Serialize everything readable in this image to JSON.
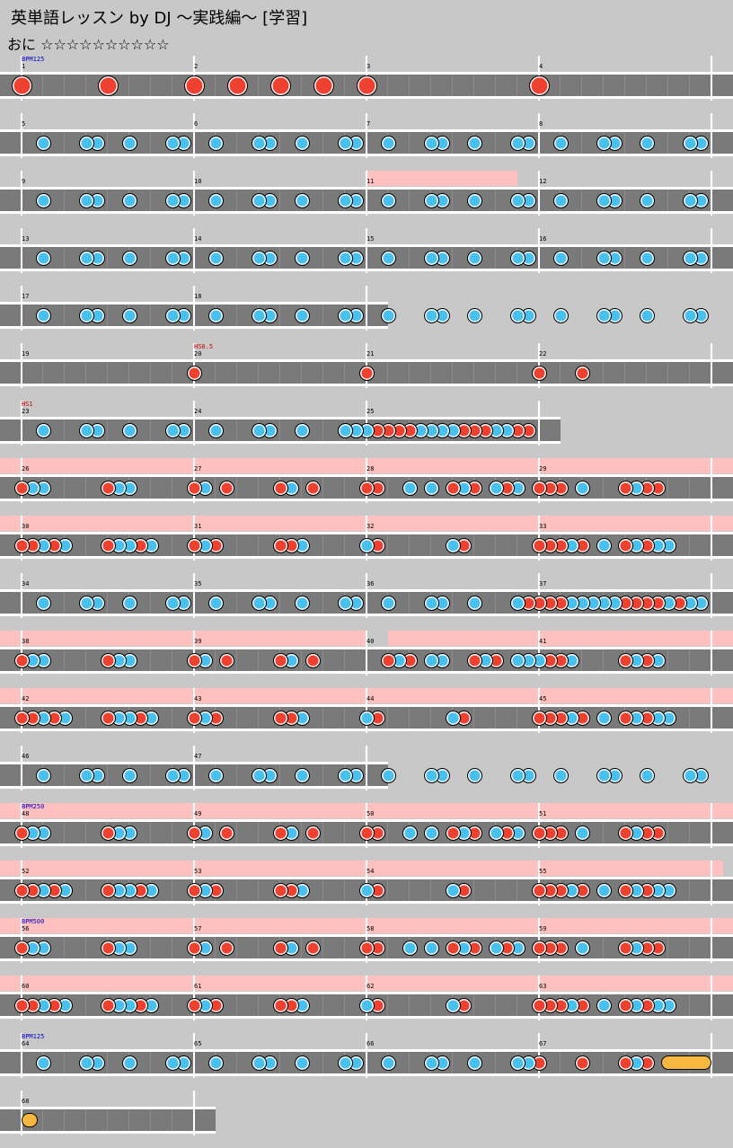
{
  "song": {
    "title": "英単語レッスン by DJ ～実践編～ [学習]",
    "difficulty_label": "おに",
    "stars": "☆☆☆☆☆☆☆☆☆☆"
  },
  "colors": {
    "don": "#f04030",
    "ka": "#48c0f0",
    "gogo": "#ffc0c0",
    "lane": "#7a7a7a",
    "background": "#c8c8c8",
    "roll": "#f8b840"
  },
  "rows": [
    {
      "first_bar": 1,
      "bars": 4,
      "commands": [
        {
          "type": "bpm",
          "text": "BPM125",
          "bar_index": 0
        }
      ],
      "gogo": [],
      "notes": [
        {
          "t": "D",
          "p": 0
        },
        {
          "t": "D",
          "p": 0.5
        },
        {
          "t": "D",
          "p": 1
        },
        {
          "t": "D",
          "p": 1.25
        },
        {
          "t": "D",
          "p": 1.5
        },
        {
          "t": "D",
          "p": 1.75
        },
        {
          "t": "D",
          "p": 2
        },
        {
          "t": "D",
          "p": 3
        }
      ]
    },
    {
      "first_bar": 5,
      "bars": 4,
      "commands": [],
      "gogo": [],
      "pattern": "kaA"
    },
    {
      "first_bar": 9,
      "bars": 4,
      "commands": [],
      "gogo": [
        [
          2,
          2.875
        ]
      ],
      "pattern": "kaA"
    },
    {
      "first_bar": 13,
      "bars": 4,
      "commands": [],
      "gogo": [],
      "pattern": "kaA"
    },
    {
      "first_bar": 17,
      "bars": 2,
      "commands": [],
      "gogo": [],
      "pattern": "kaA"
    },
    {
      "first_bar": 19,
      "bars": 4,
      "commands": [
        {
          "type": "hs",
          "text": "HS0.5",
          "bar_index": 1
        }
      ],
      "gogo": [],
      "notes": [
        {
          "t": "d",
          "p": 1
        },
        {
          "t": "d",
          "p": 2
        },
        {
          "t": "d",
          "p": 3
        },
        {
          "t": "d",
          "p": 3.25
        }
      ]
    },
    {
      "first_bar": 23,
      "bars": 3,
      "commands": [
        {
          "type": "hs",
          "text": "HS1",
          "bar_index": 0
        }
      ],
      "gogo": [],
      "pattern": "row23"
    },
    {
      "first_bar": 26,
      "bars": 4,
      "commands": [],
      "gogo": [
        [
          0,
          4.2
        ]
      ],
      "pattern": "gogoA"
    },
    {
      "first_bar": 30,
      "bars": 4,
      "commands": [],
      "gogo": [
        [
          0,
          4.2
        ]
      ],
      "pattern": "gogoB"
    },
    {
      "first_bar": 34,
      "bars": 4,
      "commands": [],
      "gogo": [],
      "pattern": "row34"
    },
    {
      "first_bar": 38,
      "bars": 4,
      "commands": [],
      "gogo": [
        [
          0,
          2
        ],
        [
          2.125,
          4.2
        ]
      ],
      "pattern": "row38"
    },
    {
      "first_bar": 42,
      "bars": 4,
      "commands": [],
      "gogo": [
        [
          0,
          4.2
        ]
      ],
      "pattern": "gogoB"
    },
    {
      "first_bar": 46,
      "bars": 2,
      "commands": [],
      "gogo": [],
      "pattern": "kaA"
    },
    {
      "first_bar": 48,
      "bars": 4,
      "commands": [
        {
          "type": "bpm",
          "text": "BPM250",
          "bar_index": 0
        }
      ],
      "gogo": [
        [
          0,
          4.2
        ]
      ],
      "pattern": "gogoA"
    },
    {
      "first_bar": 52,
      "bars": 4,
      "commands": [],
      "gogo": [
        [
          0,
          4.07
        ]
      ],
      "pattern": "gogoB"
    },
    {
      "first_bar": 56,
      "bars": 4,
      "commands": [
        {
          "type": "bpm",
          "text": "BPM500",
          "bar_index": 0
        }
      ],
      "gogo": [
        [
          0,
          4.2
        ]
      ],
      "pattern": "gogoA"
    },
    {
      "first_bar": 60,
      "bars": 4,
      "commands": [],
      "gogo": [
        [
          0,
          4.2
        ]
      ],
      "pattern": "gogoB"
    },
    {
      "first_bar": 64,
      "bars": 4,
      "commands": [
        {
          "type": "bpm",
          "text": "BPM125",
          "bar_index": 0
        }
      ],
      "gogo": [],
      "pattern": "row64"
    },
    {
      "first_bar": 68,
      "bars": 1,
      "commands": [],
      "gogo": [],
      "pattern": "row68"
    }
  ]
}
